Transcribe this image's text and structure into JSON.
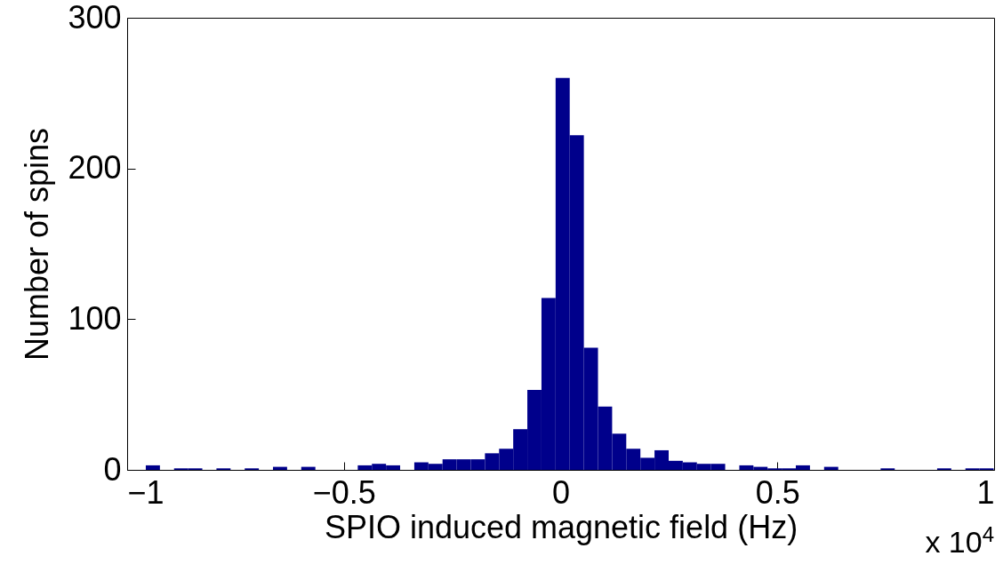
{
  "chart_data": {
    "type": "histogram",
    "xlabel": "SPIO induced magnetic field (Hz)",
    "ylabel": "Number of spins",
    "annotations": [
      "x 10$^{4}$"
    ],
    "bins": [
      -0.957,
      -0.9244,
      -0.8918,
      -0.8592,
      -0.8266,
      -0.794,
      -0.7614,
      -0.7288,
      -0.6962,
      -0.6636,
      -0.631,
      -0.5984,
      -0.5658,
      -0.5332,
      -0.5006,
      -0.468,
      -0.4354,
      -0.4028,
      -0.3702,
      -0.3376,
      -0.305,
      -0.2724,
      -0.2398,
      -0.2072,
      -0.1746,
      -0.142,
      -0.1094,
      -0.0768,
      -0.0442,
      -0.0116,
      0.021,
      0.0536,
      0.0862,
      0.1188,
      0.1514,
      0.184,
      0.2166,
      0.2492,
      0.2818,
      0.3144,
      0.347,
      0.3796,
      0.4122,
      0.4448,
      0.4774,
      0.51,
      0.5426,
      0.5752,
      0.6078,
      0.6404,
      0.673,
      0.7056,
      0.7382,
      0.7708,
      0.8034,
      0.836,
      0.8686,
      0.9012,
      0.9338,
      0.9664,
      0.999
    ],
    "values": [
      3,
      0,
      1,
      1,
      0,
      1,
      0,
      1,
      0,
      2,
      0,
      2,
      0,
      0,
      0,
      3,
      4,
      3,
      0,
      5,
      4,
      7,
      7,
      7,
      11,
      14,
      27,
      53,
      114,
      260,
      222,
      81,
      42,
      24,
      14,
      8,
      13,
      6,
      5,
      4,
      4,
      0,
      3,
      2,
      1,
      1,
      3,
      0,
      2,
      0,
      0,
      0,
      1,
      0,
      0,
      0,
      1,
      0,
      1,
      1
    ],
    "color": "#00008b",
    "xlim": [
      -1,
      1
    ],
    "xticks": [
      {
        "value": -1,
        "label": "−1"
      },
      {
        "value": -0.5,
        "label": "−0.5"
      },
      0,
      0.5,
      1
    ],
    "ylim": [
      0,
      300
    ],
    "yticks": [
      0,
      100,
      200,
      300
    ],
    "grid": false
  }
}
